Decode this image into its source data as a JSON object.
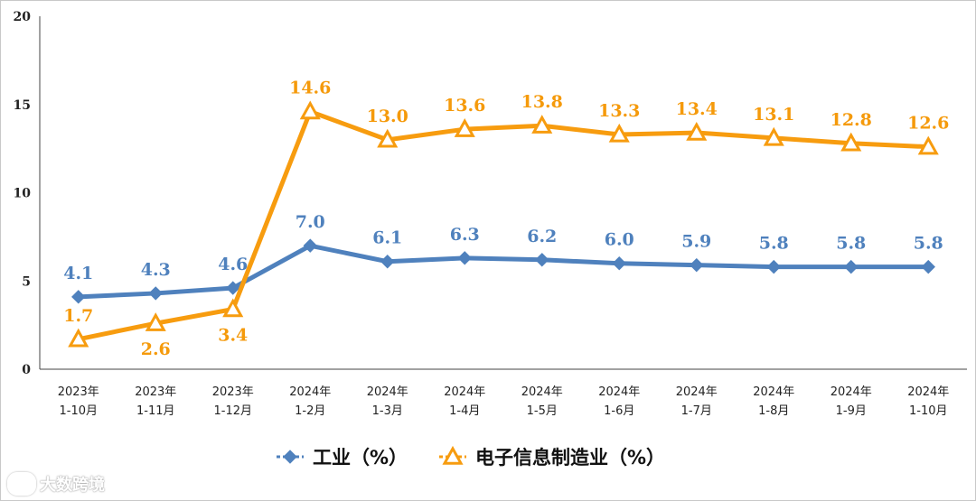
{
  "chart_data": {
    "type": "line",
    "categories": [
      [
        "2023年",
        "1-10月"
      ],
      [
        "2023年",
        "1-11月"
      ],
      [
        "2023年",
        "1-12月"
      ],
      [
        "2024年",
        "1-2月"
      ],
      [
        "2024年",
        "1-3月"
      ],
      [
        "2024年",
        "1-4月"
      ],
      [
        "2024年",
        "1-5月"
      ],
      [
        "2024年",
        "1-6月"
      ],
      [
        "2024年",
        "1-7月"
      ],
      [
        "2024年",
        "1-8月"
      ],
      [
        "2024年",
        "1-9月"
      ],
      [
        "2024年",
        "1-10月"
      ]
    ],
    "series": [
      {
        "name": "工业（%）",
        "color": "#4f81bd",
        "label_color": "#4f81bd",
        "marker": "diamond",
        "values": [
          4.1,
          4.3,
          4.6,
          7.0,
          6.1,
          6.3,
          6.2,
          6.0,
          5.9,
          5.8,
          5.8,
          5.8
        ],
        "labels": [
          "4.1",
          "4.3",
          "4.6",
          "7.0",
          "6.1",
          "6.3",
          "6.2",
          "6.0",
          "5.9",
          "5.8",
          "5.8",
          "5.8"
        ]
      },
      {
        "name": "电子信息制造业（%）",
        "color": "#f79c0f",
        "label_color": "#f59a0b",
        "marker": "triangle",
        "values": [
          1.7,
          2.6,
          3.4,
          14.6,
          13.0,
          13.6,
          13.8,
          13.3,
          13.4,
          13.1,
          12.8,
          12.6
        ],
        "labels": [
          "1.7",
          "2.6",
          "3.4",
          "14.6",
          "13.0",
          "13.6",
          "13.8",
          "13.3",
          "13.4",
          "13.1",
          "12.8",
          "12.6"
        ]
      }
    ],
    "yticks": [
      "0",
      "5",
      "10",
      "15",
      "20"
    ],
    "ylim": [
      0,
      20
    ],
    "title": "",
    "xlabel": "",
    "ylabel": "",
    "legend_position": "bottom-center"
  },
  "watermark": {
    "text": "大数跨境",
    "icon": "logo-icon"
  }
}
